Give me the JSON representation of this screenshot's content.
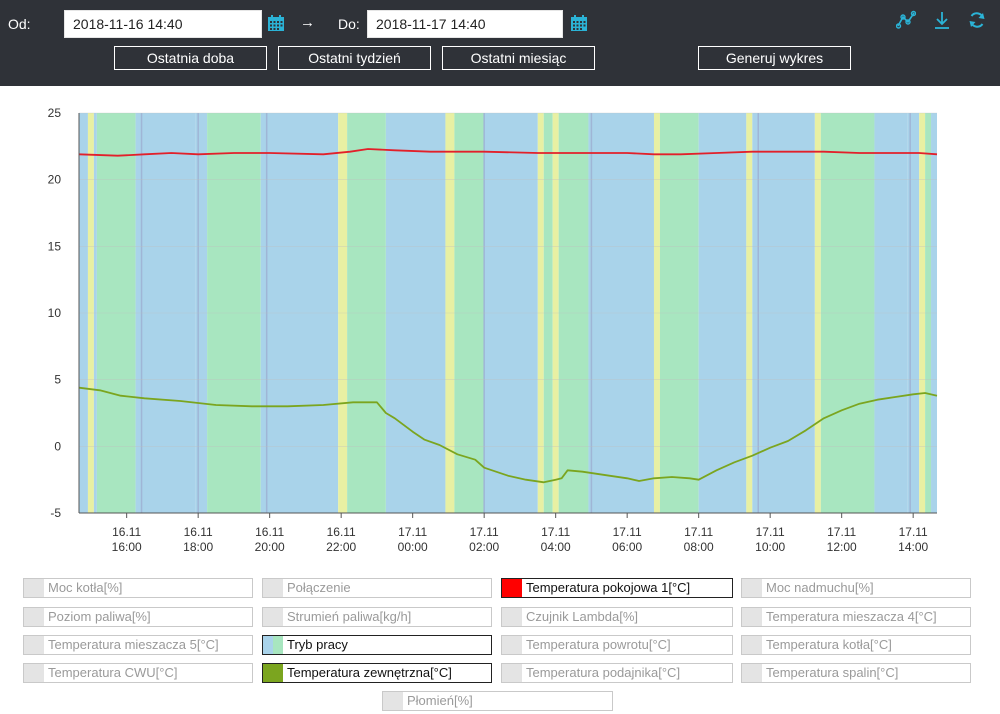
{
  "header": {
    "from_label": "Od:",
    "from_value": "2018-11-16 14:40",
    "arrow": "→",
    "to_label": "Do:",
    "to_value": "2018-11-17 14:40",
    "buttons": [
      "Ostatnia doba",
      "Ostatni tydzień",
      "Ostatni miesiąc",
      "Generuj wykres"
    ],
    "tool_icons": [
      "chart-line-icon",
      "download-icon",
      "refresh-icon"
    ],
    "accent_color": "#2bb3d6"
  },
  "chart_data": {
    "type": "line",
    "title": "",
    "xlabel": "",
    "ylabel": "",
    "ylim": [
      -5,
      25
    ],
    "yticks": [
      25,
      20,
      15,
      10,
      5,
      0,
      -5
    ],
    "x_start": "2018-11-16 14:40",
    "x_end": "2018-11-17 14:40",
    "xticks": [
      {
        "time": "2018-11-16 16:00",
        "label": [
          "16.11",
          "16:00"
        ]
      },
      {
        "time": "2018-11-16 18:00",
        "label": [
          "16.11",
          "18:00"
        ]
      },
      {
        "time": "2018-11-16 20:00",
        "label": [
          "16.11",
          "20:00"
        ]
      },
      {
        "time": "2018-11-16 22:00",
        "label": [
          "16.11",
          "22:00"
        ]
      },
      {
        "time": "2018-11-17 00:00",
        "label": [
          "17.11",
          "00:00"
        ]
      },
      {
        "time": "2018-11-17 02:00",
        "label": [
          "17.11",
          "02:00"
        ]
      },
      {
        "time": "2018-11-17 04:00",
        "label": [
          "17.11",
          "04:00"
        ]
      },
      {
        "time": "2018-11-17 06:00",
        "label": [
          "17.11",
          "06:00"
        ]
      },
      {
        "time": "2018-11-17 08:00",
        "label": [
          "17.11",
          "08:00"
        ]
      },
      {
        "time": "2018-11-17 10:00",
        "label": [
          "17.11",
          "10:00"
        ]
      },
      {
        "time": "2018-11-17 12:00",
        "label": [
          "17.11",
          "12:00"
        ]
      },
      {
        "time": "2018-11-17 14:00",
        "label": [
          "17.11",
          "14:00"
        ]
      }
    ],
    "series": [
      {
        "name": "Temperatura pokojowa 1[°C]",
        "color": "#e2202a",
        "points": [
          [
            "2018-11-16 14:40",
            21.9
          ],
          [
            "2018-11-16 15:45",
            21.8
          ],
          [
            "2018-11-16 16:30",
            21.9
          ],
          [
            "2018-11-16 17:15",
            22.0
          ],
          [
            "2018-11-16 18:00",
            21.9
          ],
          [
            "2018-11-16 19:00",
            22.0
          ],
          [
            "2018-11-16 20:00",
            22.0
          ],
          [
            "2018-11-16 21:30",
            21.9
          ],
          [
            "2018-11-16 22:15",
            22.1
          ],
          [
            "2018-11-16 22:45",
            22.3
          ],
          [
            "2018-11-16 23:30",
            22.2
          ],
          [
            "2018-11-17 00:30",
            22.1
          ],
          [
            "2018-11-17 02:00",
            22.1
          ],
          [
            "2018-11-17 03:30",
            22.0
          ],
          [
            "2018-11-17 05:00",
            22.0
          ],
          [
            "2018-11-17 06:00",
            22.0
          ],
          [
            "2018-11-17 06:45",
            21.9
          ],
          [
            "2018-11-17 07:30",
            21.9
          ],
          [
            "2018-11-17 08:30",
            22.0
          ],
          [
            "2018-11-17 09:30",
            22.1
          ],
          [
            "2018-11-17 10:30",
            22.1
          ],
          [
            "2018-11-17 11:30",
            22.1
          ],
          [
            "2018-11-17 12:30",
            22.0
          ],
          [
            "2018-11-17 13:30",
            22.0
          ],
          [
            "2018-11-17 14:10",
            22.0
          ],
          [
            "2018-11-17 14:40",
            21.9
          ]
        ]
      },
      {
        "name": "Temperatura zewnętrzna[°C]",
        "color": "#7ba51f",
        "points": [
          [
            "2018-11-16 14:40",
            4.4
          ],
          [
            "2018-11-16 15:15",
            4.2
          ],
          [
            "2018-11-16 15:50",
            3.8
          ],
          [
            "2018-11-16 16:30",
            3.6
          ],
          [
            "2018-11-16 17:30",
            3.4
          ],
          [
            "2018-11-16 18:30",
            3.1
          ],
          [
            "2018-11-16 19:30",
            3.0
          ],
          [
            "2018-11-16 20:30",
            3.0
          ],
          [
            "2018-11-16 21:30",
            3.1
          ],
          [
            "2018-11-16 22:20",
            3.3
          ],
          [
            "2018-11-16 23:00",
            3.3
          ],
          [
            "2018-11-16 23:15",
            2.5
          ],
          [
            "2018-11-16 23:30",
            2.1
          ],
          [
            "2018-11-17 00:00",
            1.1
          ],
          [
            "2018-11-17 00:20",
            0.5
          ],
          [
            "2018-11-17 00:45",
            0.1
          ],
          [
            "2018-11-17 01:15",
            -0.6
          ],
          [
            "2018-11-17 01:45",
            -1.0
          ],
          [
            "2018-11-17 02:00",
            -1.6
          ],
          [
            "2018-11-17 02:40",
            -2.2
          ],
          [
            "2018-11-17 03:10",
            -2.5
          ],
          [
            "2018-11-17 03:40",
            -2.7
          ],
          [
            "2018-11-17 04:00",
            -2.5
          ],
          [
            "2018-11-17 04:10",
            -2.4
          ],
          [
            "2018-11-17 04:20",
            -1.8
          ],
          [
            "2018-11-17 04:45",
            -1.9
          ],
          [
            "2018-11-17 05:30",
            -2.2
          ],
          [
            "2018-11-17 06:00",
            -2.4
          ],
          [
            "2018-11-17 06:20",
            -2.6
          ],
          [
            "2018-11-17 06:45",
            -2.4
          ],
          [
            "2018-11-17 07:15",
            -2.3
          ],
          [
            "2018-11-17 07:45",
            -2.4
          ],
          [
            "2018-11-17 08:00",
            -2.5
          ],
          [
            "2018-11-17 08:30",
            -1.8
          ],
          [
            "2018-11-17 09:00",
            -1.2
          ],
          [
            "2018-11-17 09:30",
            -0.7
          ],
          [
            "2018-11-17 10:00",
            -0.1
          ],
          [
            "2018-11-17 10:30",
            0.4
          ],
          [
            "2018-11-17 11:00",
            1.2
          ],
          [
            "2018-11-17 11:30",
            2.1
          ],
          [
            "2018-11-17 12:00",
            2.7
          ],
          [
            "2018-11-17 12:30",
            3.2
          ],
          [
            "2018-11-17 13:00",
            3.5
          ],
          [
            "2018-11-17 13:30",
            3.7
          ],
          [
            "2018-11-17 14:00",
            3.9
          ],
          [
            "2018-11-17 14:20",
            4.0
          ],
          [
            "2018-11-17 14:40",
            3.8
          ]
        ]
      }
    ],
    "tryb_pracy_bands": {
      "name": "Tryb pracy",
      "colors": {
        "green": "#a8e6c0",
        "blue": "#a9d3ea",
        "yellow": "#e8f0a3"
      },
      "segments": [
        [
          "2018-11-16 14:40",
          "2018-11-16 14:55",
          "blue"
        ],
        [
          "2018-11-16 14:55",
          "2018-11-16 15:05",
          "yellow"
        ],
        [
          "2018-11-16 15:05",
          "2018-11-16 15:10",
          "blue"
        ],
        [
          "2018-11-16 15:10",
          "2018-11-16 16:15",
          "green"
        ],
        [
          "2018-11-16 16:15",
          "2018-11-16 17:55",
          "blue"
        ],
        [
          "2018-11-16 17:55",
          "2018-11-16 18:15",
          "blue"
        ],
        [
          "2018-11-16 18:15",
          "2018-11-16 19:45",
          "green"
        ],
        [
          "2018-11-16 19:45",
          "2018-11-16 21:55",
          "blue"
        ],
        [
          "2018-11-16 21:55",
          "2018-11-16 22:10",
          "yellow"
        ],
        [
          "2018-11-16 22:10",
          "2018-11-16 23:15",
          "green"
        ],
        [
          "2018-11-16 23:15",
          "2018-11-17 00:55",
          "blue"
        ],
        [
          "2018-11-17 00:55",
          "2018-11-17 01:10",
          "yellow"
        ],
        [
          "2018-11-17 01:10",
          "2018-11-17 02:00",
          "green"
        ],
        [
          "2018-11-17 02:00",
          "2018-11-17 03:30",
          "blue"
        ],
        [
          "2018-11-17 03:30",
          "2018-11-17 03:40",
          "yellow"
        ],
        [
          "2018-11-17 03:40",
          "2018-11-17 03:55",
          "green"
        ],
        [
          "2018-11-17 03:55",
          "2018-11-17 04:05",
          "yellow"
        ],
        [
          "2018-11-17 04:05",
          "2018-11-17 04:55",
          "green"
        ],
        [
          "2018-11-17 04:55",
          "2018-11-17 06:45",
          "blue"
        ],
        [
          "2018-11-17 06:45",
          "2018-11-17 06:55",
          "yellow"
        ],
        [
          "2018-11-17 06:55",
          "2018-11-17 08:00",
          "green"
        ],
        [
          "2018-11-17 08:00",
          "2018-11-17 09:20",
          "blue"
        ],
        [
          "2018-11-17 09:20",
          "2018-11-17 09:30",
          "yellow"
        ],
        [
          "2018-11-17 09:30",
          "2018-11-17 11:15",
          "blue"
        ],
        [
          "2018-11-17 11:15",
          "2018-11-17 11:25",
          "yellow"
        ],
        [
          "2018-11-17 11:25",
          "2018-11-17 12:55",
          "green"
        ],
        [
          "2018-11-17 12:55",
          "2018-11-17 13:50",
          "blue"
        ],
        [
          "2018-11-17 13:50",
          "2018-11-17 14:10",
          "blue"
        ],
        [
          "2018-11-17 14:10",
          "2018-11-17 14:20",
          "yellow"
        ],
        [
          "2018-11-17 14:20",
          "2018-11-17 14:30",
          "green"
        ],
        [
          "2018-11-17 14:30",
          "2018-11-17 14:40",
          "blue"
        ]
      ],
      "lines": [
        "2018-11-16 16:25",
        "2018-11-16 18:00",
        "2018-11-16 19:55",
        "2018-11-17 02:00",
        "2018-11-17 05:00",
        "2018-11-17 09:40",
        "2018-11-17 13:55"
      ]
    },
    "grid": true,
    "grid_color": "#bdbdbd"
  },
  "legend": [
    {
      "label": "Moc kotła[%]",
      "active": false
    },
    {
      "label": "Połączenie",
      "active": false
    },
    {
      "label": "Temperatura pokojowa 1[°C]",
      "active": true,
      "color": "#ff0000"
    },
    {
      "label": "Moc nadmuchu[%]",
      "active": false
    },
    {
      "label": "Poziom paliwa[%]",
      "active": false
    },
    {
      "label": "Strumień paliwa[kg/h]",
      "active": false
    },
    {
      "label": "Czujnik Lambda[%]",
      "active": false
    },
    {
      "label": "Temperatura mieszacza 4[°C]",
      "active": false
    },
    {
      "label": "Temperatura mieszacza 5[°C]",
      "active": false
    },
    {
      "label": "Tryb pracy",
      "active": true,
      "colors": [
        "#a9d3ea",
        "#a8e6c0"
      ]
    },
    {
      "label": "Temperatura powrotu[°C]",
      "active": false
    },
    {
      "label": "Temperatura kotła[°C]",
      "active": false
    },
    {
      "label": "Temperatura CWU[°C]",
      "active": false
    },
    {
      "label": "Temperatura zewnętrzna[°C]",
      "active": true,
      "color": "#7ba51f"
    },
    {
      "label": "Temperatura podajnika[°C]",
      "active": false
    },
    {
      "label": "Temperatura spalin[°C]",
      "active": false
    },
    {
      "label": "Płomień[%]",
      "active": false
    }
  ]
}
